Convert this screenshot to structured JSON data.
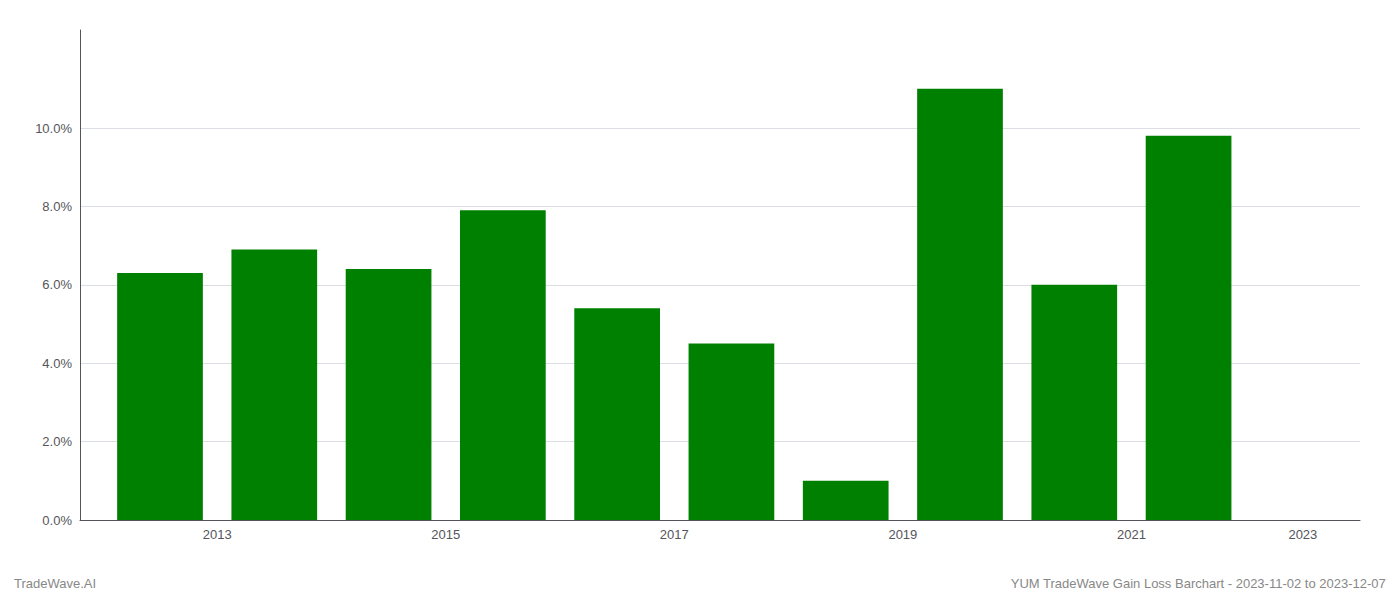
{
  "chart_data": {
    "type": "bar",
    "x": [
      2013,
      2014,
      2015,
      2016,
      2017,
      2018,
      2019,
      2020,
      2021,
      2022
    ],
    "values": [
      0.063,
      0.069,
      0.064,
      0.079,
      0.054,
      0.045,
      0.01,
      0.11,
      0.06,
      0.098
    ],
    "color": "#008000",
    "xlim": [
      2012.3,
      2023.5
    ],
    "xticks": [
      {
        "value": 2013.5,
        "label": "2013"
      },
      {
        "value": 2015.5,
        "label": "2015"
      },
      {
        "value": 2017.5,
        "label": "2017"
      },
      {
        "value": 2019.5,
        "label": "2019"
      },
      {
        "value": 2021.5,
        "label": "2021"
      },
      {
        "value": 2023.0,
        "label": "2023"
      }
    ],
    "ylim": [
      0,
      0.125
    ],
    "yticks": [
      {
        "value": 0.0,
        "label": "0.0%"
      },
      {
        "value": 0.02,
        "label": "2.0%"
      },
      {
        "value": 0.04,
        "label": "4.0%"
      },
      {
        "value": 0.06,
        "label": "6.0%"
      },
      {
        "value": 0.08,
        "label": "8.0%"
      },
      {
        "value": 0.1,
        "label": "10.0%"
      }
    ],
    "grid": true,
    "annotations": [
      {
        "text": "TradeWave.AI"
      },
      {
        "text": "YUM TradeWave Gain Loss Barchart - 2023-11-02 to 2023-12-07"
      }
    ]
  }
}
